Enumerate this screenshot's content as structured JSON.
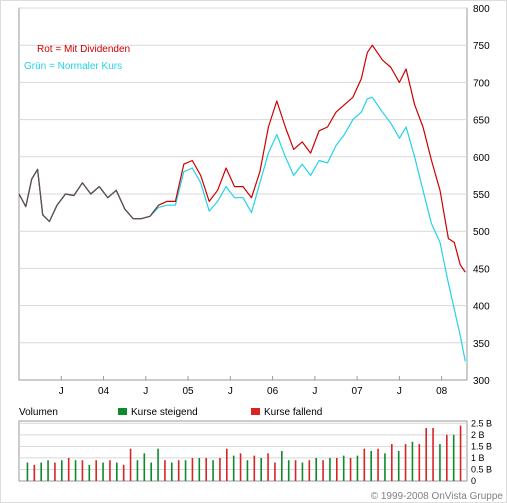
{
  "chart_data": {
    "type": "line",
    "legend": {
      "red": "Rot = Mit Dividenden",
      "cyan": "Grün = Normaler Kurs"
    },
    "colors": {
      "dividend_line": "#cc0000",
      "normal_line": "#22d3e8",
      "volume_rising": "#0f8a2a",
      "volume_falling": "#d82424",
      "price_grid": "#d8d8d8",
      "plot_border": "#999999"
    },
    "x_tick_labels": [
      "J",
      "04",
      "J",
      "05",
      "J",
      "06",
      "J",
      "07",
      "J",
      "08"
    ],
    "x_tick_values": [
      2003.5,
      2004.0,
      2004.5,
      2005.0,
      2005.5,
      2006.0,
      2006.5,
      2007.0,
      2007.5,
      2008.0
    ],
    "xlim": [
      2003.0,
      2008.3
    ],
    "price_axis": {
      "ticks": [
        "300",
        "350",
        "400",
        "450",
        "500",
        "550",
        "600",
        "650",
        "700",
        "750",
        "800"
      ],
      "ylim": [
        300,
        800
      ],
      "grid": true
    },
    "series": [
      {
        "name": "Rot = Mit Dividenden",
        "points": [
          [
            2003.0,
            550
          ],
          [
            2003.08,
            533
          ],
          [
            2003.15,
            570
          ],
          [
            2003.22,
            583
          ],
          [
            2003.28,
            522
          ],
          [
            2003.36,
            513
          ],
          [
            2003.45,
            535
          ],
          [
            2003.55,
            550
          ],
          [
            2003.65,
            548
          ],
          [
            2003.75,
            565
          ],
          [
            2003.85,
            550
          ],
          [
            2003.95,
            560
          ],
          [
            2004.05,
            545
          ],
          [
            2004.15,
            555
          ],
          [
            2004.25,
            530
          ],
          [
            2004.35,
            517
          ],
          [
            2004.45,
            517
          ],
          [
            2004.55,
            520
          ],
          [
            2004.65,
            535
          ],
          [
            2004.75,
            540
          ],
          [
            2004.85,
            540
          ],
          [
            2004.95,
            590
          ],
          [
            2005.05,
            595
          ],
          [
            2005.15,
            575
          ],
          [
            2005.25,
            540
          ],
          [
            2005.35,
            555
          ],
          [
            2005.45,
            585
          ],
          [
            2005.55,
            560
          ],
          [
            2005.65,
            560
          ],
          [
            2005.75,
            545
          ],
          [
            2005.85,
            580
          ],
          [
            2005.95,
            640
          ],
          [
            2006.05,
            675
          ],
          [
            2006.15,
            640
          ],
          [
            2006.25,
            610
          ],
          [
            2006.35,
            620
          ],
          [
            2006.45,
            605
          ],
          [
            2006.55,
            635
          ],
          [
            2006.65,
            640
          ],
          [
            2006.75,
            660
          ],
          [
            2006.85,
            670
          ],
          [
            2006.95,
            680
          ],
          [
            2007.05,
            705
          ],
          [
            2007.12,
            740
          ],
          [
            2007.18,
            750
          ],
          [
            2007.3,
            730
          ],
          [
            2007.4,
            720
          ],
          [
            2007.5,
            700
          ],
          [
            2007.58,
            718
          ],
          [
            2007.68,
            670
          ],
          [
            2007.78,
            640
          ],
          [
            2007.88,
            595
          ],
          [
            2007.98,
            555
          ],
          [
            2008.08,
            490
          ],
          [
            2008.15,
            485
          ],
          [
            2008.22,
            455
          ],
          [
            2008.28,
            445
          ]
        ]
      },
      {
        "name": "Grün = Normaler Kurs",
        "points": [
          [
            2003.0,
            550
          ],
          [
            2003.08,
            533
          ],
          [
            2003.15,
            570
          ],
          [
            2003.22,
            583
          ],
          [
            2003.28,
            522
          ],
          [
            2003.36,
            513
          ],
          [
            2003.45,
            535
          ],
          [
            2003.55,
            550
          ],
          [
            2003.65,
            548
          ],
          [
            2003.75,
            565
          ],
          [
            2003.85,
            550
          ],
          [
            2003.95,
            560
          ],
          [
            2004.05,
            545
          ],
          [
            2004.15,
            555
          ],
          [
            2004.25,
            530
          ],
          [
            2004.35,
            517
          ],
          [
            2004.45,
            517
          ],
          [
            2004.55,
            520
          ],
          [
            2004.65,
            532
          ],
          [
            2004.75,
            535
          ],
          [
            2004.85,
            535
          ],
          [
            2004.95,
            580
          ],
          [
            2005.05,
            585
          ],
          [
            2005.15,
            565
          ],
          [
            2005.25,
            527
          ],
          [
            2005.35,
            540
          ],
          [
            2005.45,
            560
          ],
          [
            2005.55,
            545
          ],
          [
            2005.65,
            545
          ],
          [
            2005.75,
            525
          ],
          [
            2005.85,
            565
          ],
          [
            2005.95,
            605
          ],
          [
            2006.05,
            630
          ],
          [
            2006.15,
            600
          ],
          [
            2006.25,
            575
          ],
          [
            2006.35,
            590
          ],
          [
            2006.45,
            575
          ],
          [
            2006.55,
            595
          ],
          [
            2006.65,
            592
          ],
          [
            2006.75,
            615
          ],
          [
            2006.85,
            630
          ],
          [
            2006.95,
            650
          ],
          [
            2007.05,
            660
          ],
          [
            2007.12,
            678
          ],
          [
            2007.18,
            680
          ],
          [
            2007.3,
            660
          ],
          [
            2007.4,
            645
          ],
          [
            2007.5,
            625
          ],
          [
            2007.58,
            640
          ],
          [
            2007.68,
            600
          ],
          [
            2007.78,
            555
          ],
          [
            2007.88,
            510
          ],
          [
            2007.98,
            485
          ],
          [
            2008.08,
            430
          ],
          [
            2008.15,
            395
          ],
          [
            2008.22,
            360
          ],
          [
            2008.28,
            325
          ]
        ]
      }
    ],
    "volume": {
      "label": "Volumen",
      "legend_rising": "Kurse steigend",
      "legend_falling": "Kurse fallend",
      "ticks": [
        "0",
        "0.5 B",
        "1 B",
        "1.5 B",
        "2 B",
        "2.5 B"
      ],
      "ylim": [
        0,
        2.6
      ],
      "bars": [
        {
          "v": 0.8,
          "up": true
        },
        {
          "v": 0.7,
          "up": false
        },
        {
          "v": 0.8,
          "up": true
        },
        {
          "v": 0.9,
          "up": true
        },
        {
          "v": 0.8,
          "up": false
        },
        {
          "v": 0.9,
          "up": true
        },
        {
          "v": 1.0,
          "up": false
        },
        {
          "v": 0.9,
          "up": true
        },
        {
          "v": 0.9,
          "up": false
        },
        {
          "v": 0.7,
          "up": true
        },
        {
          "v": 0.9,
          "up": false
        },
        {
          "v": 0.8,
          "up": true
        },
        {
          "v": 0.9,
          "up": false
        },
        {
          "v": 0.8,
          "up": true
        },
        {
          "v": 0.7,
          "up": false
        },
        {
          "v": 1.4,
          "up": false
        },
        {
          "v": 0.9,
          "up": true
        },
        {
          "v": 1.2,
          "up": true
        },
        {
          "v": 0.8,
          "up": true
        },
        {
          "v": 1.4,
          "up": true
        },
        {
          "v": 0.9,
          "up": false
        },
        {
          "v": 0.8,
          "up": true
        },
        {
          "v": 0.9,
          "up": false
        },
        {
          "v": 0.9,
          "up": true
        },
        {
          "v": 1.0,
          "up": false
        },
        {
          "v": 1.0,
          "up": true
        },
        {
          "v": 1.0,
          "up": false
        },
        {
          "v": 0.9,
          "up": true
        },
        {
          "v": 1.0,
          "up": false
        },
        {
          "v": 1.4,
          "up": false
        },
        {
          "v": 1.1,
          "up": true
        },
        {
          "v": 1.2,
          "up": false
        },
        {
          "v": 0.9,
          "up": true
        },
        {
          "v": 1.1,
          "up": false
        },
        {
          "v": 1.0,
          "up": true
        },
        {
          "v": 1.2,
          "up": false
        },
        {
          "v": 0.8,
          "up": false
        },
        {
          "v": 1.3,
          "up": true
        },
        {
          "v": 0.9,
          "up": true
        },
        {
          "v": 0.9,
          "up": false
        },
        {
          "v": 0.8,
          "up": true
        },
        {
          "v": 0.9,
          "up": false
        },
        {
          "v": 1.0,
          "up": true
        },
        {
          "v": 0.9,
          "up": false
        },
        {
          "v": 1.0,
          "up": true
        },
        {
          "v": 1.0,
          "up": false
        },
        {
          "v": 1.1,
          "up": true
        },
        {
          "v": 1.0,
          "up": false
        },
        {
          "v": 1.1,
          "up": true
        },
        {
          "v": 1.4,
          "up": false
        },
        {
          "v": 1.3,
          "up": true
        },
        {
          "v": 1.4,
          "up": false
        },
        {
          "v": 1.2,
          "up": true
        },
        {
          "v": 1.6,
          "up": false
        },
        {
          "v": 1.3,
          "up": true
        },
        {
          "v": 1.6,
          "up": false
        },
        {
          "v": 1.7,
          "up": true
        },
        {
          "v": 1.6,
          "up": false
        },
        {
          "v": 2.3,
          "up": false
        },
        {
          "v": 2.3,
          "up": false
        },
        {
          "v": 1.6,
          "up": true
        },
        {
          "v": 2.0,
          "up": false
        },
        {
          "v": 2.0,
          "up": true
        },
        {
          "v": 2.4,
          "up": false
        }
      ]
    }
  },
  "footer": {
    "copyright": "© 1999-2008 OnVista Gruppe"
  }
}
